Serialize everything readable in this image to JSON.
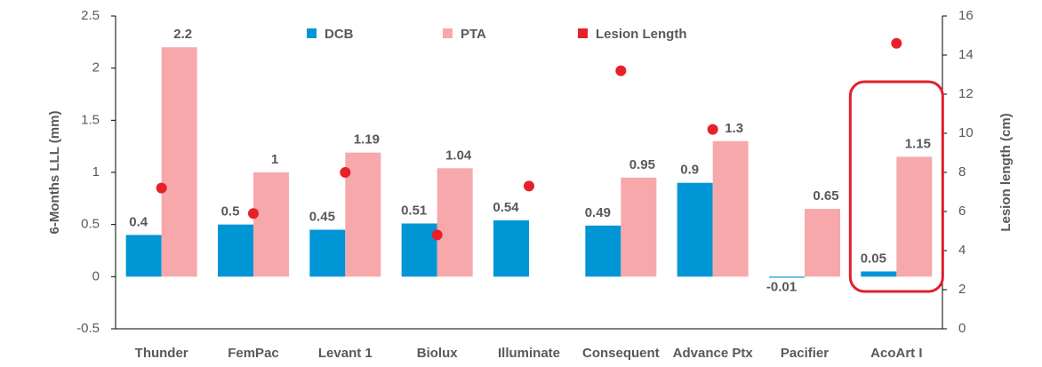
{
  "chart_data": {
    "type": "bar",
    "categories": [
      "Thunder",
      "FemPac",
      "Levant 1",
      "Biolux",
      "Illuminate",
      "Consequent",
      "Advance Ptx",
      "Pacifier",
      "AcoArt I"
    ],
    "series": [
      {
        "name": "DCB",
        "color": "#0096d6",
        "values": [
          0.4,
          0.5,
          0.45,
          0.51,
          0.54,
          0.49,
          0.9,
          -0.01,
          0.05
        ]
      },
      {
        "name": "PTA",
        "color": "#f7a8ab",
        "values": [
          2.2,
          1,
          1.19,
          1.04,
          null,
          0.95,
          1.3,
          0.65,
          1.15
        ]
      },
      {
        "name": "Lesion Length",
        "type": "scatter",
        "axis": "y2",
        "color": "#e8202a",
        "values": [
          7.2,
          5.9,
          8.0,
          4.8,
          7.3,
          13.2,
          10.2,
          null,
          14.6
        ]
      }
    ],
    "y_label": "6-Months LLL (mm)",
    "y2_label": "Lesion length (cm)",
    "ylim": [
      -0.5,
      2.5
    ],
    "yticks": [
      -0.5,
      0,
      0.5,
      1,
      1.5,
      2,
      2.5
    ],
    "y2lim": [
      0,
      16
    ],
    "y2ticks": [
      0,
      2,
      4,
      6,
      8,
      10,
      12,
      14,
      16
    ],
    "legend": "top"
  }
}
